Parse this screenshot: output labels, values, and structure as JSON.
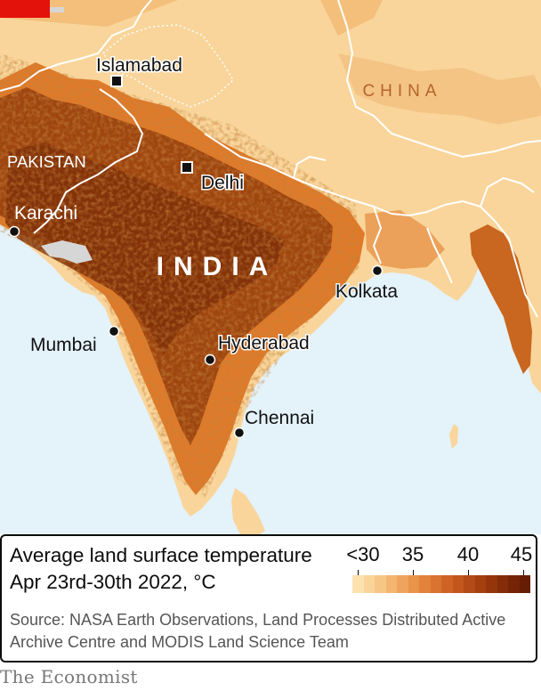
{
  "map": {
    "country_labels": {
      "china": "CHINA",
      "pakistan": "PAKISTAN",
      "india": "INDIA"
    },
    "cities": {
      "islamabad": "Islamabad",
      "delhi": "Delhi",
      "karachi": "Karachi",
      "kolkata": "Kolkata",
      "mumbai": "Mumbai",
      "hyderabad": "Hyderabad",
      "chennai": "Chennai"
    },
    "colors": {
      "sea": "#e4f2fa",
      "land_cool": "#f9d59b",
      "land_mid": "#e9923e",
      "land_hot": "#a04a12",
      "land_hottest": "#7a2a06",
      "no_data": "#d8d8d8",
      "border": "#ffffff",
      "country_label": "#b5642a"
    }
  },
  "legend": {
    "title": "Average land surface temperature",
    "subtitle": "Apr 23rd-30th 2022, °C",
    "scale_labels": [
      "<30",
      "35",
      "40",
      "45"
    ],
    "source": "Source: NASA Earth Observations, Land Processes Distributed Active Archive Centre and MODIS Land Science Team"
  },
  "brand": "The Economist"
}
